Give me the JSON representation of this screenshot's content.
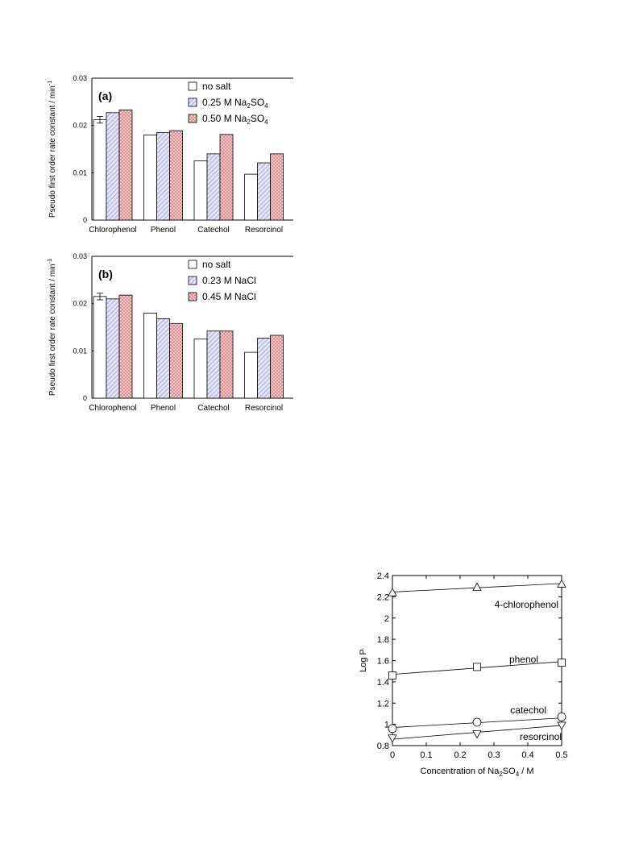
{
  "chart_data": [
    {
      "type": "bar",
      "panel_label": "(a)",
      "ylabel": "Pseudo first order rate constant / min",
      "ylabel_sup": "-1",
      "ylim": [
        0,
        0.03
      ],
      "yticks": [
        "0",
        "0.01",
        "0.02",
        "0.03"
      ],
      "ytick_values": [
        0,
        0.01,
        0.02,
        0.03
      ],
      "categories": [
        "Chlorophenol",
        "Phenol",
        "Catechol",
        "Resorcinol"
      ],
      "series": [
        {
          "name": "no salt",
          "name_parts": [
            "no salt"
          ],
          "pattern": "none",
          "values": [
            0.0212,
            0.018,
            0.0125,
            0.0097
          ],
          "error": [
            0.0007,
            0,
            0,
            0
          ]
        },
        {
          "name": "0.25 M Na2SO4",
          "name_parts": [
            "0.25 M Na",
            "2",
            "SO",
            "4"
          ],
          "pattern": "blue-hatch",
          "values": [
            0.0227,
            0.0185,
            0.014,
            0.0121
          ]
        },
        {
          "name": "0.50 M Na2SO4",
          "name_parts": [
            "0.50 M Na",
            "2",
            "SO",
            "4"
          ],
          "pattern": "red-cross",
          "values": [
            0.0233,
            0.0189,
            0.0181,
            0.014
          ]
        }
      ],
      "legend_position": "top-right",
      "grid": false
    },
    {
      "type": "bar",
      "panel_label": "(b)",
      "ylabel": "Pseudo first order rate constant / min",
      "ylabel_sup": "-1",
      "ylim": [
        0,
        0.03
      ],
      "yticks": [
        "0",
        "0.01",
        "0.02",
        "0.03"
      ],
      "ytick_values": [
        0,
        0.01,
        0.02,
        0.03
      ],
      "categories": [
        "Chlorophenol",
        "Phenol",
        "Catechol",
        "Resorcinol"
      ],
      "series": [
        {
          "name": "no salt",
          "name_parts": [
            "no salt"
          ],
          "pattern": "none",
          "values": [
            0.0215,
            0.018,
            0.0125,
            0.0097
          ],
          "error": [
            0.0007,
            0,
            0,
            0
          ]
        },
        {
          "name": "0.23 M NaCl",
          "name_parts": [
            "0.23 M NaCl"
          ],
          "pattern": "blue-hatch",
          "values": [
            0.021,
            0.0168,
            0.0142,
            0.0127
          ]
        },
        {
          "name": "0.45 M NaCl",
          "name_parts": [
            "0.45 M NaCl"
          ],
          "pattern": "red-cross",
          "values": [
            0.0218,
            0.0158,
            0.0142,
            0.0133
          ]
        }
      ],
      "legend_position": "top-right",
      "grid": false
    },
    {
      "type": "scatter",
      "ylabel": "Log P",
      "xlabel_parts": [
        "Concentration of Na",
        "2",
        "SO",
        "4",
        " / M"
      ],
      "xlim": [
        0,
        0.5
      ],
      "ylim": [
        0.8,
        2.4
      ],
      "xticks": [
        "0",
        "0.1",
        "0.2",
        "0.3",
        "0.4",
        "0.5"
      ],
      "xtick_values": [
        0,
        0.1,
        0.2,
        0.3,
        0.4,
        0.5
      ],
      "yticks": [
        "0.8",
        "1",
        "1.2",
        "1.4",
        "1.6",
        "1.8",
        "2",
        "2.2",
        "2.4"
      ],
      "ytick_values": [
        0.8,
        1.0,
        1.2,
        1.4,
        1.6,
        1.8,
        2.0,
        2.2,
        2.4
      ],
      "series": [
        {
          "name": "4-chlorophenol",
          "marker": "triangle-up",
          "x": [
            0,
            0.25,
            0.5
          ],
          "y": [
            2.24,
            2.29,
            2.32
          ],
          "fit": [
            2.245,
            2.325
          ]
        },
        {
          "name": "phenol",
          "marker": "square",
          "x": [
            0,
            0.25,
            0.5
          ],
          "y": [
            1.46,
            1.54,
            1.58
          ],
          "fit": [
            1.47,
            1.59
          ]
        },
        {
          "name": "catechol",
          "marker": "circle",
          "x": [
            0,
            0.25,
            0.5
          ],
          "y": [
            0.96,
            1.02,
            1.07
          ],
          "fit": [
            0.97,
            1.06
          ]
        },
        {
          "name": "resorcinol",
          "marker": "triangle-down",
          "x": [
            0,
            0.25,
            0.5
          ],
          "y": [
            0.87,
            0.91,
            0.99
          ],
          "fit": [
            0.86,
            0.99
          ]
        }
      ],
      "grid": false
    }
  ]
}
